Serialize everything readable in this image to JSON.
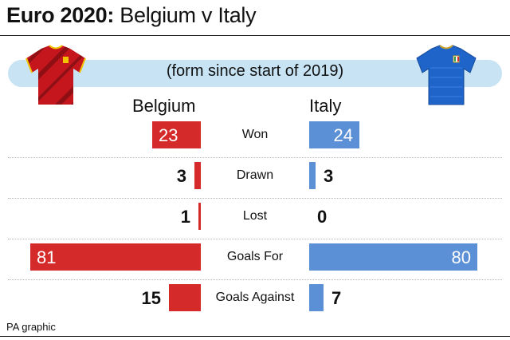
{
  "header": {
    "title_bold": "Euro 2020:",
    "title_rest": "Belgium v Italy",
    "subtitle": "(form since start of 2019)"
  },
  "teams": {
    "left": {
      "name": "Belgium",
      "color": "#d42a2a",
      "shirt_icon": "belgium-shirt-icon"
    },
    "right": {
      "name": "Italy",
      "color": "#5b8fd6",
      "shirt_icon": "italy-shirt-icon"
    }
  },
  "chart_data": {
    "type": "bar",
    "orientation": "horizontal-back-to-back",
    "categories": [
      "Won",
      "Drawn",
      "Lost",
      "Goals For",
      "Goals Against"
    ],
    "series": [
      {
        "name": "Belgium",
        "values": [
          23,
          3,
          1,
          81,
          15
        ],
        "labels": [
          "23",
          "3",
          "1",
          "81",
          "15"
        ],
        "color": "#d42a2a"
      },
      {
        "name": "Italy",
        "values": [
          24,
          3,
          0,
          80,
          7
        ],
        "labels": [
          "24",
          "3",
          "0",
          "80",
          "7"
        ],
        "color": "#5b8fd6"
      }
    ],
    "scale_max": 81
  },
  "footer": {
    "credit": "PA graphic"
  }
}
